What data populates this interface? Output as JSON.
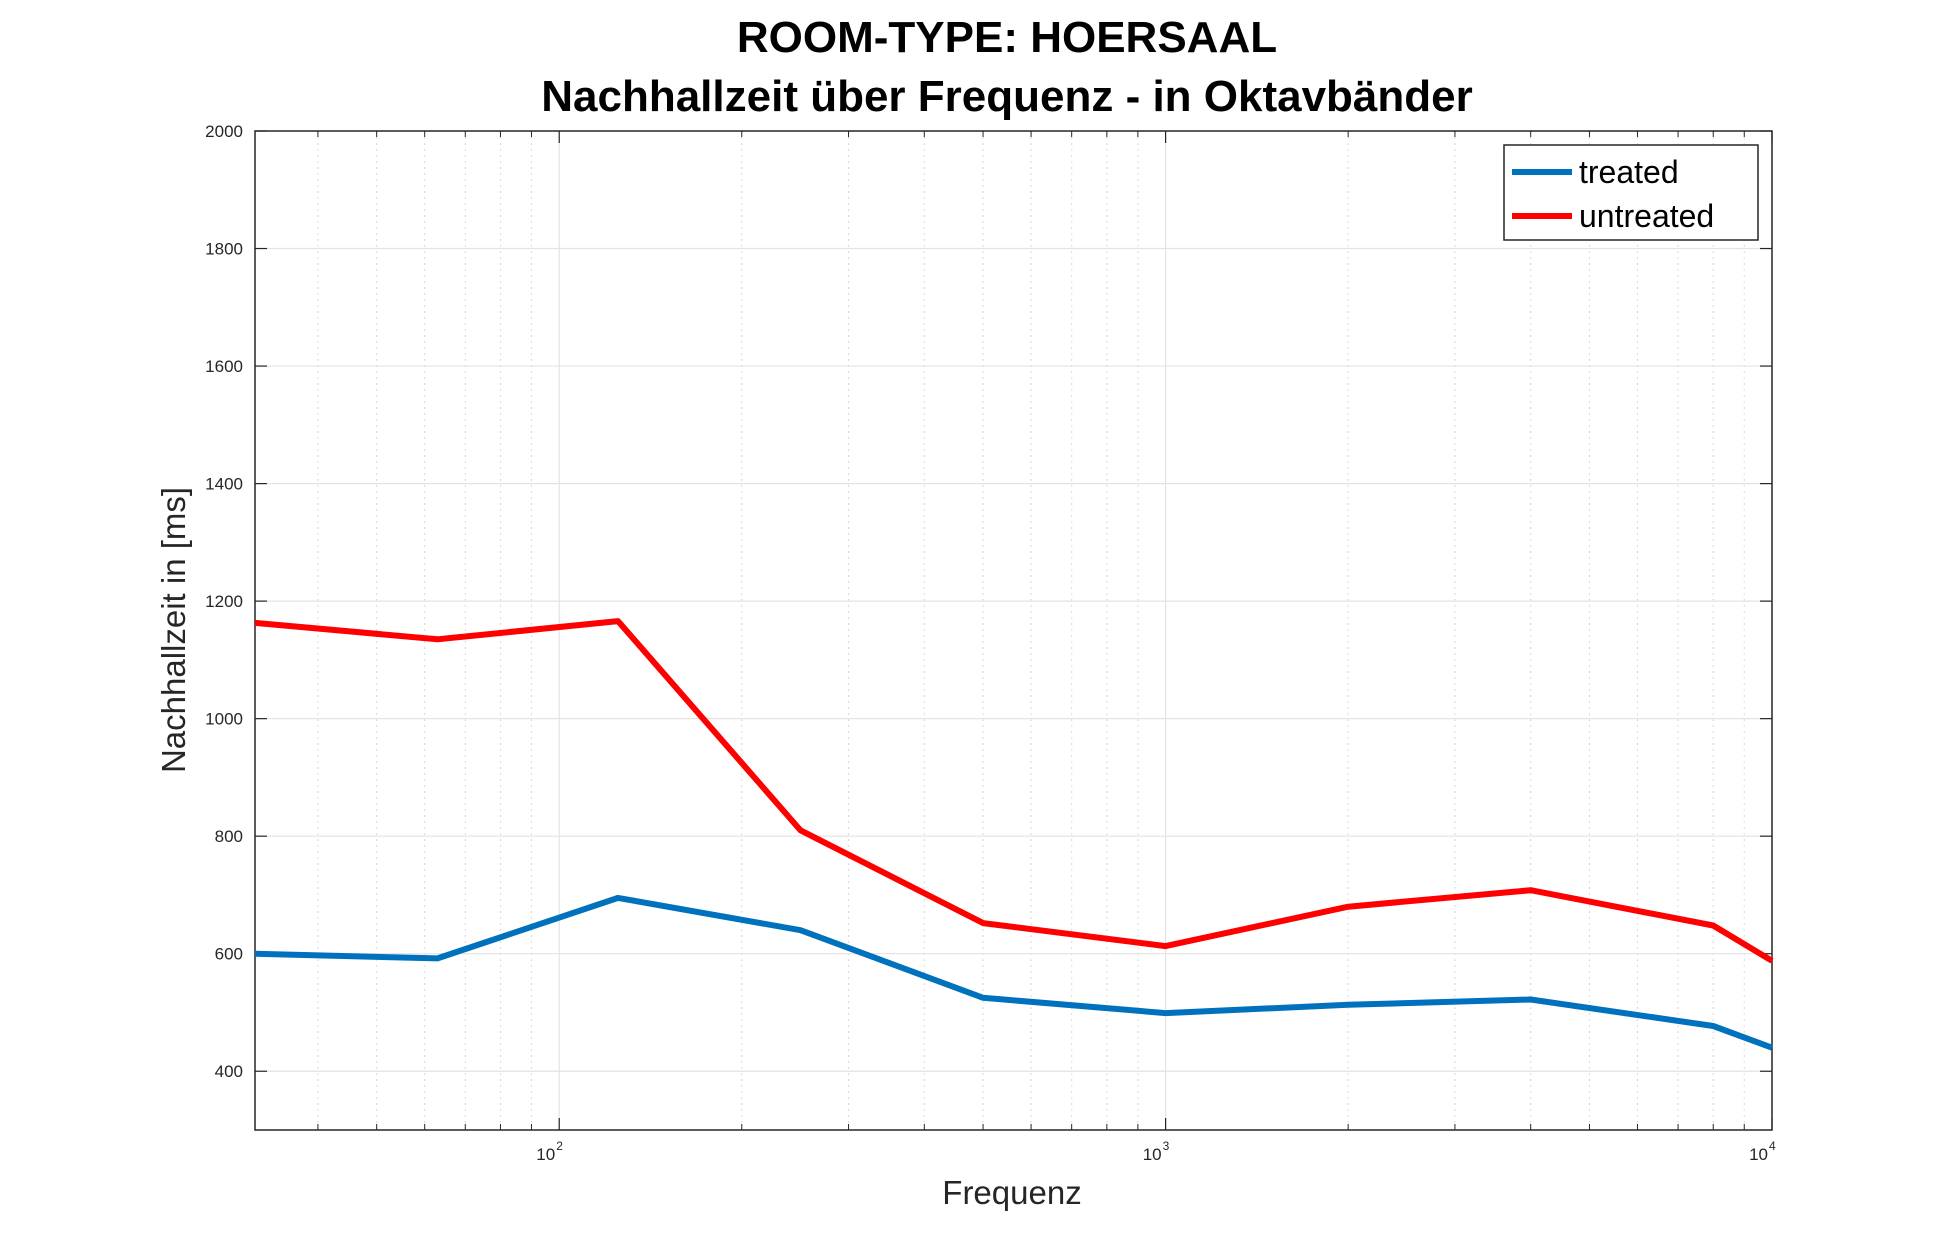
{
  "chart_data": {
    "type": "line",
    "title": [
      "ROOM-TYPE: HOERSAAL",
      "Nachhallzeit über Frequenz - in Oktavbänder"
    ],
    "xlabel": "Frequenz",
    "ylabel": "Nachhallzeit in [ms]",
    "xscale": "log",
    "xlim": [
      31.5,
      10000
    ],
    "ylim": [
      300,
      2000
    ],
    "yticks": [
      400,
      600,
      800,
      1000,
      1200,
      1400,
      1600,
      1800,
      2000
    ],
    "xticks": [
      {
        "value": 100,
        "base": "10",
        "exp": "2"
      },
      {
        "value": 1000,
        "base": "10",
        "exp": "3"
      },
      {
        "value": 10000,
        "base": "10",
        "exp": "4"
      }
    ],
    "grid": true,
    "legend_position": "top-right",
    "x": [
      31.5,
      63,
      125,
      250,
      500,
      1000,
      2000,
      4000,
      8000,
      10000
    ],
    "series": [
      {
        "name": "treated",
        "color": "#0072BD",
        "values": [
          600,
          592,
          695,
          640,
          525,
          499,
          513,
          522,
          477,
          440
        ]
      },
      {
        "name": "untreated",
        "color": "#FF0000",
        "values": [
          1163,
          1135,
          1166,
          810,
          652,
          613,
          680,
          708,
          648,
          588
        ]
      }
    ]
  }
}
